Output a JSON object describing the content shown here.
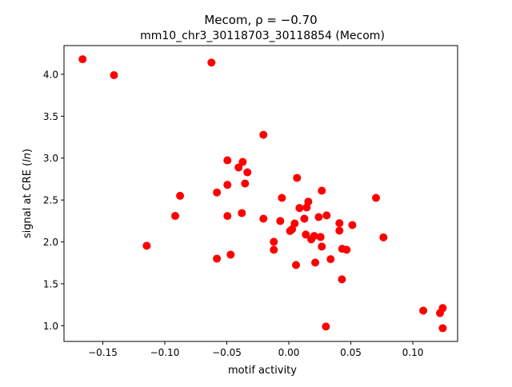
{
  "chart_data": {
    "type": "scatter",
    "title_line1": "Mecom, ρ = −0.70",
    "title_line2": "mm10_chr3_30118703_30118854 (Mecom)",
    "xlabel": "motif activity",
    "ylabel": "signal at CRE (ln)",
    "ylabel_prefix": "signal at CRE (",
    "ylabel_italic": "ln",
    "ylabel_suffix": ")",
    "xlim": [
      -0.1813,
      0.1361
    ],
    "ylim": [
      0.812,
      4.343
    ],
    "xticks": [
      -0.15,
      -0.1,
      -0.05,
      0.0,
      0.05,
      0.1
    ],
    "xtick_labels": [
      "−0.15",
      "−0.10",
      "−0.05",
      "0.00",
      "0.05",
      "0.10"
    ],
    "yticks": [
      1.0,
      1.5,
      2.0,
      2.5,
      3.0,
      3.5,
      4.0
    ],
    "ytick_labels": [
      "1.0",
      "1.5",
      "2.0",
      "2.5",
      "3.0",
      "3.5",
      "4.0"
    ],
    "grid": false,
    "marker_color": "#ff0000",
    "points": [
      [
        -0.1663,
        4.18
      ],
      [
        -0.141,
        3.99
      ],
      [
        -0.0624,
        4.14
      ],
      [
        -0.1146,
        1.954
      ],
      [
        -0.058,
        1.8
      ],
      [
        -0.0877,
        2.55
      ],
      [
        -0.0916,
        2.31
      ],
      [
        -0.058,
        2.59
      ],
      [
        -0.0205,
        3.278
      ],
      [
        -0.0495,
        2.973
      ],
      [
        -0.0372,
        2.954
      ],
      [
        -0.0405,
        2.888
      ],
      [
        -0.0334,
        2.83
      ],
      [
        0.0066,
        2.764
      ],
      [
        -0.0495,
        2.681
      ],
      [
        -0.0353,
        2.697
      ],
      [
        0.0266,
        2.611
      ],
      [
        0.0703,
        2.525
      ],
      [
        -0.0056,
        2.525
      ],
      [
        0.0157,
        2.48
      ],
      [
        0.0086,
        2.404
      ],
      [
        0.0144,
        2.411
      ],
      [
        -0.0495,
        2.309
      ],
      [
        -0.0379,
        2.344
      ],
      [
        -0.0205,
        2.277
      ],
      [
        -0.0069,
        2.249
      ],
      [
        0.0125,
        2.277
      ],
      [
        0.0241,
        2.296
      ],
      [
        0.0305,
        2.316
      ],
      [
        0.0047,
        2.22
      ],
      [
        0.0408,
        2.223
      ],
      [
        0.0512,
        2.201
      ],
      [
        0.0026,
        2.15
      ],
      [
        0.001,
        2.13
      ],
      [
        0.0408,
        2.134
      ],
      [
        0.0763,
        2.054
      ],
      [
        -0.0121,
        2.001
      ],
      [
        -0.0121,
        1.906
      ],
      [
        -0.0469,
        1.848
      ],
      [
        0.0137,
        2.087
      ],
      [
        0.0205,
        2.071
      ],
      [
        0.0181,
        2.03
      ],
      [
        0.0256,
        2.058
      ],
      [
        0.0266,
        1.944
      ],
      [
        0.043,
        1.918
      ],
      [
        0.0466,
        1.906
      ],
      [
        0.0058,
        1.724
      ],
      [
        0.0213,
        1.753
      ],
      [
        0.0337,
        1.794
      ],
      [
        0.0428,
        1.553
      ],
      [
        0.0299,
        0.99
      ],
      [
        0.1084,
        1.18
      ],
      [
        0.1219,
        1.15
      ],
      [
        0.1241,
        1.21
      ],
      [
        0.1241,
        0.97
      ]
    ]
  }
}
